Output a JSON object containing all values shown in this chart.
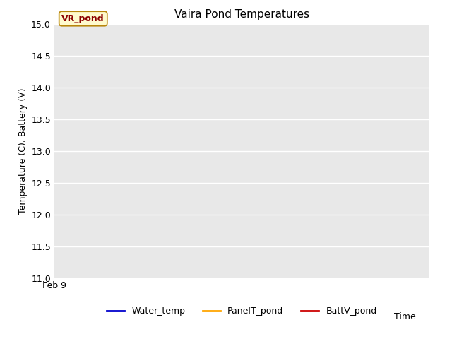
{
  "title": "Vaira Pond Temperatures",
  "ylabel": "Temperature (C), Battery (V)",
  "xlabel": "Time",
  "ylim": [
    11.0,
    15.0
  ],
  "yticks": [
    11.0,
    11.5,
    12.0,
    12.5,
    13.0,
    13.5,
    14.0,
    14.5,
    15.0
  ],
  "xmin_label": "Feb 9",
  "annotation_text": "VR_pond",
  "annotation_fontsize": 9,
  "annotation_color": "#8B0000",
  "annotation_bg": "#FFFACD",
  "annotation_border_color": "#B8860B",
  "legend_labels": [
    "Water_temp",
    "PanelT_pond",
    "BattV_pond"
  ],
  "legend_colors": [
    "#0000CC",
    "#FFA500",
    "#CC0000"
  ],
  "figure_bg_color": "#FFFFFF",
  "plot_bg_color": "#E8E8E8",
  "grid_color": "#FFFFFF",
  "title_fontsize": 11,
  "label_fontsize": 9,
  "tick_fontsize": 9
}
